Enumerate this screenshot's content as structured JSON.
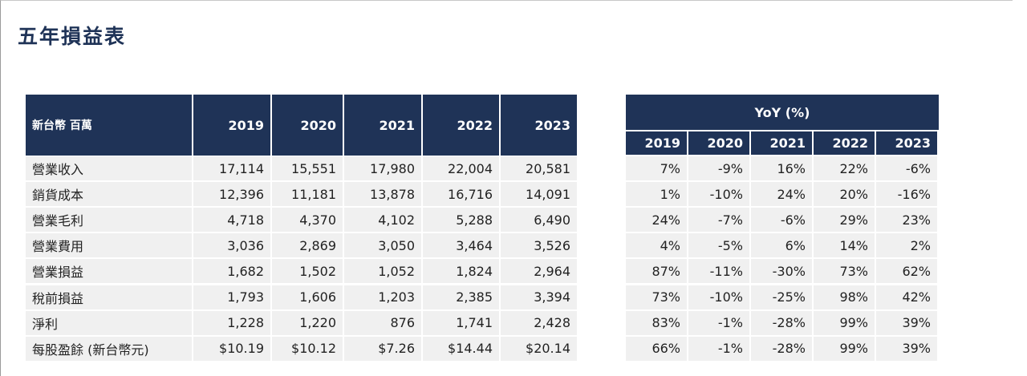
{
  "title": "五年損益表",
  "income_table": {
    "header": [
      "新台幣 百萬",
      "2019",
      "2020",
      "2021",
      "2022",
      "2023"
    ],
    "rows": [
      [
        "營業收入",
        "17,114",
        "15,551",
        "17,980",
        "22,004",
        "20,581"
      ],
      [
        "銷貨成本",
        "12,396",
        "11,181",
        "13,878",
        "16,716",
        "14,091"
      ],
      [
        "營業毛利",
        "4,718",
        "4,370",
        "4,102",
        "5,288",
        "6,490"
      ],
      [
        "營業費用",
        "3,036",
        "2,869",
        "3,050",
        "3,464",
        "3,526"
      ],
      [
        "營業損益",
        "1,682",
        "1,502",
        "1,052",
        "1,824",
        "2,964"
      ],
      [
        "稅前損益",
        "1,793",
        "1,606",
        "1,203",
        "2,385",
        "3,394"
      ],
      [
        "淨利",
        "1,228",
        "1,220",
        "876",
        "1,741",
        "2,428"
      ],
      [
        "每股盈餘 (新台幣元)",
        "$10.19",
        "$10.12",
        "$7.26",
        "$14.44",
        "$20.14"
      ]
    ]
  },
  "yoy_table": {
    "title": "YoY (%)",
    "header": [
      "2019",
      "2020",
      "2021",
      "2022",
      "2023"
    ],
    "rows": [
      [
        "7%",
        "-9%",
        "16%",
        "22%",
        "-6%"
      ],
      [
        "1%",
        "-10%",
        "24%",
        "20%",
        "-16%"
      ],
      [
        "24%",
        "-7%",
        "-6%",
        "29%",
        "23%"
      ],
      [
        "4%",
        "-5%",
        "6%",
        "14%",
        "2%"
      ],
      [
        "87%",
        "-11%",
        "-30%",
        "73%",
        "62%"
      ],
      [
        "73%",
        "-10%",
        "-25%",
        "98%",
        "42%"
      ],
      [
        "83%",
        "-1%",
        "-28%",
        "99%",
        "39%"
      ],
      [
        "66%",
        "-1%",
        "-28%",
        "99%",
        "39%"
      ]
    ]
  }
}
